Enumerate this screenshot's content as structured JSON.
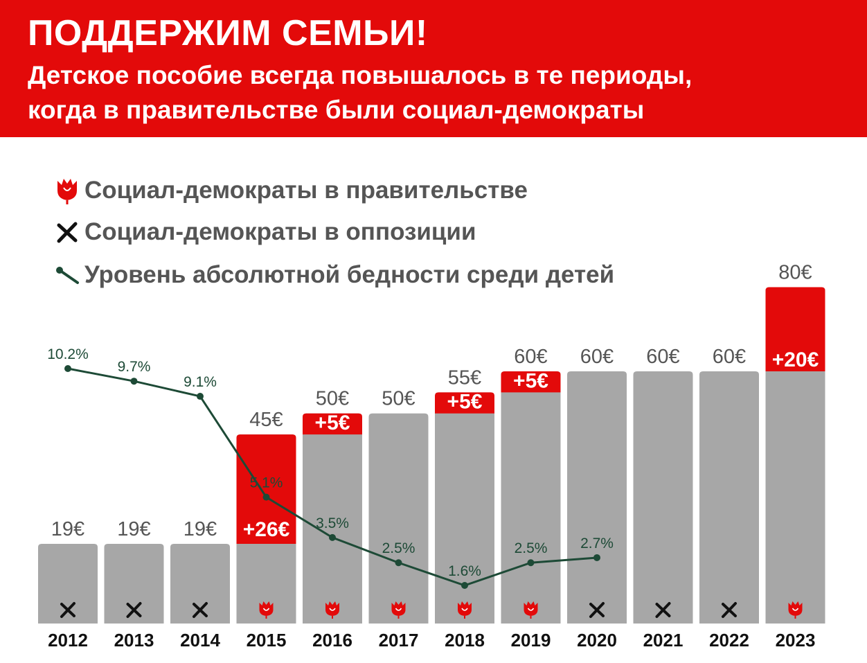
{
  "header": {
    "title": "ПОДДЕРЖИМ СЕМЬИ!",
    "subtitle_line1": "Детское пособие всегда повышалось в те периоды,",
    "subtitle_line2": "когда в правительстве были социал-демократы"
  },
  "legend": [
    {
      "icon": "rose-icon",
      "label": "Социал-демократы в правительстве"
    },
    {
      "icon": "cross-icon",
      "label": "Социал-демократы в оппозиции"
    },
    {
      "icon": "line-marker-icon",
      "label": "Уровень абсолютной бедности среди детей"
    }
  ],
  "colors": {
    "header_bg": "#e30a0a",
    "bar_gray": "#a7a7a7",
    "increase_red": "#e30a0a",
    "poverty_line": "#1d4a36",
    "text_gray": "#555555"
  },
  "chart_data": {
    "type": "bar",
    "categories": [
      "2012",
      "2013",
      "2014",
      "2015",
      "2016",
      "2017",
      "2018",
      "2019",
      "2020",
      "2021",
      "2022",
      "2023"
    ],
    "series": [
      {
        "name": "Детское пособие",
        "values": [
          19,
          19,
          19,
          45,
          50,
          50,
          55,
          60,
          60,
          60,
          60,
          80
        ],
        "labels": [
          "19€",
          "19€",
          "19€",
          "45€",
          "50€",
          "50€",
          "55€",
          "60€",
          "60€",
          "60€",
          "60€",
          "80€"
        ]
      },
      {
        "values": [
          0,
          0,
          0,
          26,
          5,
          0,
          5,
          5,
          0,
          0,
          0,
          20
        ],
        "labels": [
          "",
          "",
          "",
          "+26€",
          "+5€",
          "",
          "+5€",
          "+5€",
          "",
          "",
          "",
          "+20€"
        ]
      },
      {
        "name": "Уровень абсолютной бедности среди детей",
        "type": "line",
        "values": [
          10.2,
          9.7,
          9.1,
          5.1,
          3.5,
          2.5,
          1.6,
          2.5,
          2.7,
          null,
          null,
          null
        ],
        "labels": [
          "10.2%",
          "9.7%",
          "9.1%",
          "5.1%",
          "3.5%",
          "2.5%",
          "1.6%",
          "2.5%",
          "2.7%",
          "",
          "",
          ""
        ]
      }
    ],
    "government_status": [
      "opposition",
      "opposition",
      "opposition",
      "government",
      "government",
      "government",
      "government",
      "government",
      "opposition",
      "opposition",
      "opposition",
      "government"
    ],
    "ylim_amount": [
      0,
      80
    ],
    "ylim_poverty": [
      0,
      10.2
    ],
    "legend_position": "top-left",
    "grid": false
  }
}
